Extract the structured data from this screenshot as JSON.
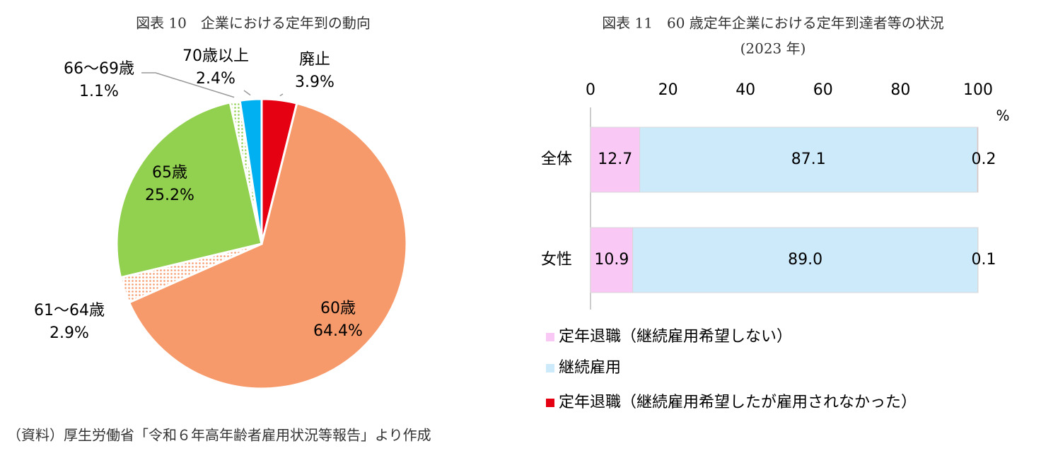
{
  "chart_data": [
    {
      "type": "pie",
      "title": "図表 10　企業における定年到の動向",
      "categories": [
        "廃止",
        "60歳",
        "61～64歳",
        "65歳",
        "66～69歳",
        "70歳以上"
      ],
      "values": [
        3.9,
        64.4,
        2.9,
        25.2,
        1.1,
        2.4
      ],
      "value_labels": [
        "3.9%",
        "64.4%",
        "2.9%",
        "25.2%",
        "1.1%",
        "2.4%"
      ],
      "colors": [
        "#e50012",
        "#f79a6b",
        "#f79a6b",
        "#92d050",
        "#92d050",
        "#00b0f0"
      ],
      "patterns": [
        "solid",
        "solid",
        "dotted",
        "solid",
        "dotted",
        "solid"
      ]
    },
    {
      "type": "stacked-bar-horizontal",
      "title": "図表 11　60 歳定年企業における定年到達者等の状況",
      "subtitle": "(2023 年)",
      "xlabel": "%",
      "categories": [
        "全体",
        "女性"
      ],
      "series": [
        {
          "name": "定年退職（継続雇用希望しない）",
          "color": "#f9c8f5",
          "values": [
            12.7,
            10.9
          ]
        },
        {
          "name": "継続雇用",
          "color": "#cdeafb",
          "values": [
            87.1,
            89.0
          ],
          "value_labels": [
            "87.1",
            "89.0"
          ]
        },
        {
          "name": "定年退職（継続雇用希望したが雇用されなかった）",
          "color": "#e50012",
          "values": [
            0.2,
            0.1
          ]
        }
      ],
      "xlim": [
        0,
        100
      ],
      "xticks": [
        0,
        20,
        40,
        60,
        80,
        100
      ]
    }
  ],
  "source": "（資料）厚生労働省「令和６年高年齢者雇用状況等報告」より作成"
}
